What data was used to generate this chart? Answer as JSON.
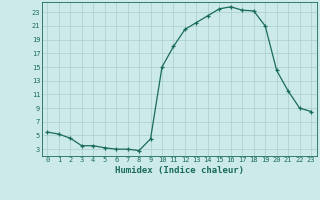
{
  "x": [
    0,
    1,
    2,
    3,
    4,
    5,
    6,
    7,
    8,
    9,
    10,
    11,
    12,
    13,
    14,
    15,
    16,
    17,
    18,
    19,
    20,
    21,
    22,
    23
  ],
  "y": [
    5.5,
    5.2,
    4.6,
    3.5,
    3.5,
    3.2,
    3.0,
    3.0,
    2.8,
    4.5,
    15.0,
    18.0,
    20.5,
    21.5,
    22.5,
    23.5,
    23.8,
    23.3,
    23.2,
    21.0,
    14.5,
    11.5,
    9.0,
    8.5
  ],
  "line_color": "#1a6b5a",
  "marker": "+",
  "marker_size": 3,
  "xlabel": "Humidex (Indice chaleur)",
  "xlim": [
    -0.5,
    23.5
  ],
  "ylim": [
    2,
    24.5
  ],
  "yticks": [
    3,
    5,
    7,
    9,
    11,
    13,
    15,
    17,
    19,
    21,
    23
  ],
  "xticks": [
    0,
    1,
    2,
    3,
    4,
    5,
    6,
    7,
    8,
    9,
    10,
    11,
    12,
    13,
    14,
    15,
    16,
    17,
    18,
    19,
    20,
    21,
    22,
    23
  ],
  "background_color": "#cceaea",
  "grid_color": "#aacccc",
  "tick_label_color": "#1a6b5a",
  "xlabel_color": "#1a6b5a",
  "xlabel_fontsize": 6.5,
  "tick_fontsize": 5.0
}
